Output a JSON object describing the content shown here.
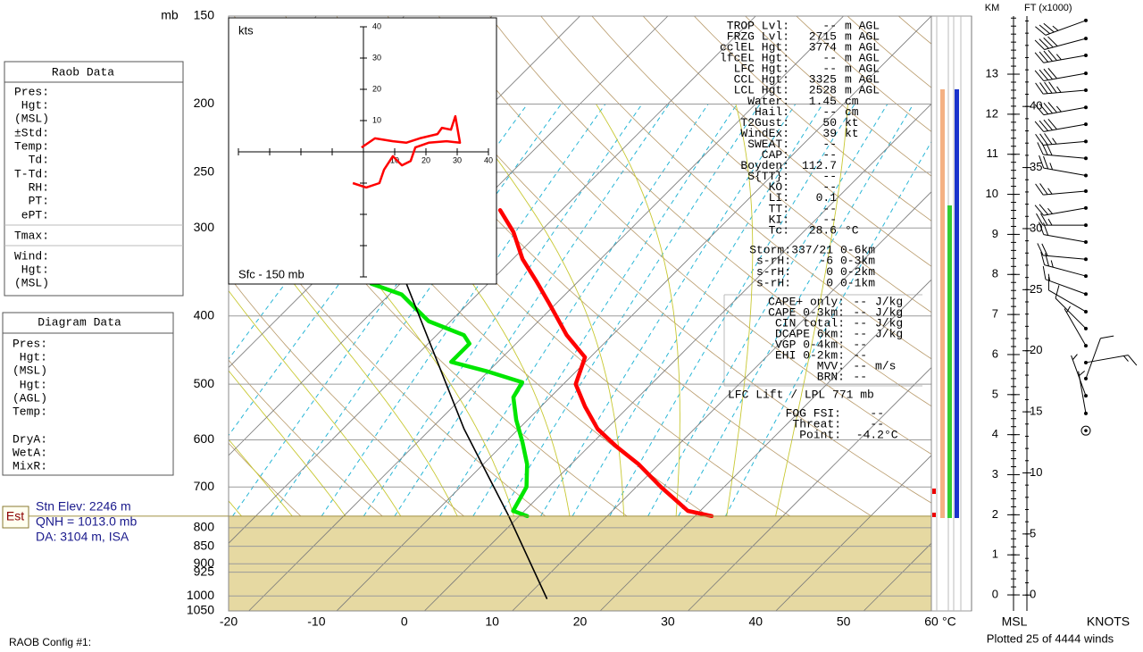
{
  "raob_panel": {
    "title": "Raob Data",
    "labels": [
      {
        "text": "Pres:"
      },
      {
        "text": "Hgt:"
      },
      {
        "text": "(MSL)"
      },
      {
        "text": "±Std:",
        "color": "#9a9a9a"
      },
      {
        "text": "Temp:"
      },
      {
        "text": "Td:"
      },
      {
        "text": "T-Td:"
      },
      {
        "text": "RH:"
      },
      {
        "text": "PT:"
      },
      {
        "text": "ePT:"
      },
      {
        "text": "Tmax:"
      },
      {
        "text": "Wind:"
      },
      {
        "text": "Hgt:"
      },
      {
        "text": "(MSL)",
        "color": "#9a9a9a"
      }
    ]
  },
  "diagram_panel": {
    "title": "Diagram Data",
    "labels": [
      {
        "text": "Pres:"
      },
      {
        "text": "Hgt:"
      },
      {
        "text": "(MSL)",
        "color": "#7a2a8a"
      },
      {
        "text": "Hgt:"
      },
      {
        "text": "(AGL)",
        "color": "#7a2a8a"
      },
      {
        "text": "Temp:"
      },
      {
        "text": "DryA:"
      },
      {
        "text": "WetA:"
      },
      {
        "text": "MixR:"
      }
    ]
  },
  "station": {
    "badge": "Est",
    "lines": [
      "Stn Elev: 2246 m",
      "QNH = 1013.0 mb",
      "DA: 3104 m, ISA"
    ]
  },
  "skewt": {
    "y_label": "mb",
    "x_unit": "°C",
    "ylim": [
      1050,
      150
    ],
    "yticks": [
      150,
      200,
      250,
      300,
      400,
      500,
      600,
      700,
      800,
      850,
      900,
      925,
      1000,
      1050
    ],
    "xlim": [
      -20,
      60
    ],
    "xticks": [
      -20,
      -10,
      0,
      10,
      20,
      30,
      40,
      50,
      60
    ],
    "surface_pressure": 770,
    "temperature": {
      "color": "#ff0000",
      "pressure": [
        770,
        757,
        700,
        650,
        613,
        579,
        538,
        500,
        458,
        426,
        384,
        357,
        332,
        304,
        283
      ],
      "values": [
        24.2,
        20.9,
        15.1,
        10.0,
        5.4,
        1.3,
        -2.7,
        -6.3,
        -8.3,
        -12.9,
        -18.5,
        -22.5,
        -26.6,
        -30.7,
        -34.7
      ]
    },
    "dewpoint": {
      "color": "#00e600",
      "pressure": [
        770,
        757,
        700,
        650,
        604,
        562,
        522,
        497,
        479,
        465,
        438,
        426,
        407,
        390,
        373,
        360
      ],
      "values": [
        3.2,
        1.0,
        -0.2,
        -2.7,
        -5.8,
        -9.0,
        -11.9,
        -12.6,
        -18.0,
        -23.0,
        -23.0,
        -24.6,
        -30.2,
        -33.2,
        -36.3,
        -41.0
      ]
    },
    "parcel": {
      "color": "#000000",
      "pressure": [
        1008,
        770,
        579,
        360
      ],
      "values": [
        14.8,
        1.1,
        -13.9,
        -37.0
      ]
    }
  },
  "stats": {
    "main": [
      {
        "label": "TROP Lvl:",
        "value": "--",
        "unit": "m AGL"
      },
      {
        "label": "FRZG Lvl:",
        "value": 2715,
        "unit": "m AGL"
      },
      {
        "label": "cclEL Hgt:",
        "value": 3774,
        "unit": "m AGL"
      },
      {
        "label": "lfcEL Hgt:",
        "value": "--",
        "unit": "m AGL"
      },
      {
        "label": "LFC Hgt:",
        "value": "--",
        "unit": "m AGL"
      },
      {
        "label": "CCL Hgt:",
        "value": 3325,
        "unit": "m AGL"
      },
      {
        "label": "LCL Hgt:",
        "value": 2528,
        "unit": "m AGL"
      },
      {
        "label": "Water:",
        "value": 1.45,
        "unit": "cm"
      },
      {
        "label": "Hail:",
        "value": "--",
        "unit": "cm"
      },
      {
        "label": "T2Gust:",
        "value": 50,
        "unit": "kt"
      },
      {
        "label": "WindEx:",
        "value": 39,
        "unit": "kt"
      },
      {
        "label": "SWEAT:",
        "value": "--"
      },
      {
        "label": "CAP:",
        "value": "--"
      },
      {
        "label": "Boyden:",
        "value": 112.7
      },
      {
        "label": "S{TT}:",
        "value": "--"
      },
      {
        "label": "KO:",
        "value": "--"
      },
      {
        "label": "LI:",
        "value": 0.1
      },
      {
        "label": "TT:",
        "value": "--"
      },
      {
        "label": "KI:",
        "value": "--"
      },
      {
        "label": "Tc:",
        "value": 28.6,
        "unit": "°C"
      }
    ],
    "storm": [
      {
        "label": "Storm:",
        "value": "337/21",
        "unit": "0-6km"
      },
      {
        "label": "s-rH:",
        "value": -6,
        "unit": "0-3km"
      },
      {
        "label": "s-rH:",
        "value": 0,
        "unit": "0-2km"
      },
      {
        "label": "s-rH:",
        "value": 0,
        "unit": "0-1km"
      }
    ],
    "cape": [
      {
        "label": "CAPE+ only:",
        "value": "--",
        "unit": "J/kg"
      },
      {
        "label": "CAPE 0-3km:",
        "value": "--",
        "unit": "J/kg"
      },
      {
        "label": "CIN total:",
        "value": "--",
        "unit": "J/kg"
      },
      {
        "label": "DCAPE 6km:",
        "value": "--",
        "unit": "J/kg"
      },
      {
        "label": "VGP 0-4km:",
        "value": "--"
      },
      {
        "label": "EHI 0-2km:",
        "value": "--"
      },
      {
        "label": "MVV:",
        "value": "--",
        "unit": "m/s"
      },
      {
        "label": "BRN:",
        "value": "--"
      }
    ],
    "lift_note": "LFC Lift / LPL 771 mb",
    "fog": [
      {
        "label": "FOG FSI:",
        "value": "--"
      },
      {
        "label": "Threat:",
        "value": "--"
      },
      {
        "label": "Point:",
        "value": -4.2,
        "unit": "°C"
      }
    ]
  },
  "hodograph": {
    "unit_label": "kts",
    "layer_label": "Sfc - 150 mb",
    "lim": [
      -40,
      40
    ],
    "ticks": [
      10,
      20,
      30,
      40
    ],
    "trace": {
      "color": "#ff0000",
      "u": [
        -0.6,
        3.7,
        9.4,
        13.7,
        18.0,
        23.7,
        25.1,
        28.0,
        29.4,
        30.9,
        26.6,
        20.9,
        16.6,
        15.1,
        12.3,
        9.4,
        6.6,
        5.1,
        0.9,
        -3.4
      ],
      "v": [
        1.4,
        4.3,
        3.4,
        2.9,
        4.3,
        5.7,
        7.7,
        7.1,
        11.4,
        2.9,
        3.4,
        2.9,
        1.4,
        -2.9,
        -4.3,
        -1.4,
        -5.7,
        -10.0,
        -11.4,
        -10.0
      ]
    }
  },
  "winds": {
    "km_label": "KM",
    "ft_label": "FT (x1000)",
    "msl_label": "MSL",
    "knots_label": "KNOTS",
    "plotted": "Plotted 25 of 4444 winds",
    "km_lim": [
      -0.4,
      14.45
    ],
    "km_ticks": [
      0,
      1,
      2,
      3,
      4,
      5,
      6,
      7,
      8,
      9,
      10,
      11,
      12,
      13
    ],
    "ft_lim": [
      -1.3,
      47.4
    ],
    "ft_ticks": [
      0,
      5,
      10,
      15,
      20,
      25,
      30,
      35,
      40
    ],
    "height_km": [
      14.34,
      13.89,
      13.47,
      13.02,
      12.6,
      12.17,
      11.75,
      11.32,
      10.9,
      10.47,
      10.08,
      9.66,
      9.23,
      8.81,
      8.38,
      7.96,
      7.51,
      7.07,
      6.65,
      6.22,
      5.8,
      5.4,
      4.97,
      4.53,
      4.1
    ],
    "direction": [
      250,
      255,
      260,
      260,
      265,
      260,
      260,
      265,
      275,
      280,
      265,
      260,
      270,
      280,
      275,
      285,
      290,
      300,
      315,
      330,
      80,
      20,
      340,
      350,
      0
    ],
    "speed": [
      35,
      40,
      45,
      40,
      45,
      45,
      40,
      35,
      30,
      25,
      25,
      25,
      25,
      20,
      20,
      25,
      15,
      10,
      10,
      5,
      15,
      10,
      5,
      5,
      0
    ]
  },
  "footer": {
    "config": "RAOB Config #1:"
  }
}
